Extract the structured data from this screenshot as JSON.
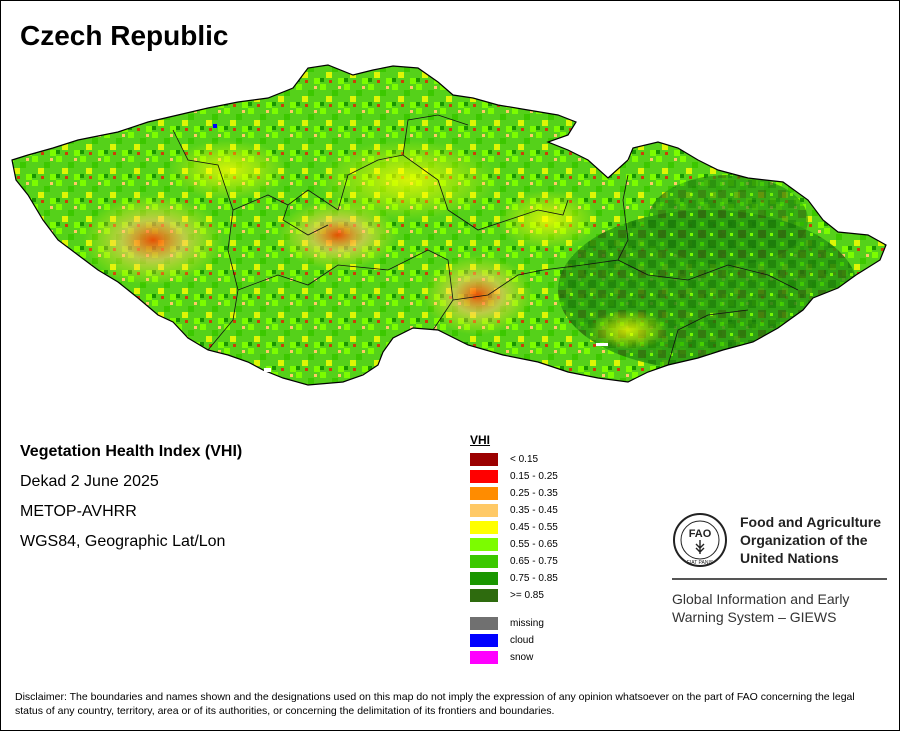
{
  "title": "Czech Republic",
  "info": {
    "index_name": "Vegetation Health Index (VHI)",
    "period": "Dekad 2 June 2025",
    "sensor": "METOP-AVHRR",
    "projection": "WGS84, Geographic Lat/Lon"
  },
  "legend": {
    "title": "VHI",
    "classes": [
      {
        "label": "< 0.15",
        "color": "#9b0000"
      },
      {
        "label": "0.15 - 0.25",
        "color": "#ff0000"
      },
      {
        "label": "0.25 - 0.35",
        "color": "#ff8c00"
      },
      {
        "label": "0.35 - 0.45",
        "color": "#ffc966"
      },
      {
        "label": "0.45 - 0.55",
        "color": "#ffff00"
      },
      {
        "label": "0.55 - 0.65",
        "color": "#7cfc00"
      },
      {
        "label": "0.65 - 0.75",
        "color": "#3cc800"
      },
      {
        "label": "0.75 - 0.85",
        "color": "#1a9600"
      },
      {
        "label": ">= 0.85",
        "color": "#2e6b0e"
      }
    ],
    "special": [
      {
        "label": "missing",
        "color": "#707070"
      },
      {
        "label": "cloud",
        "color": "#0000ff"
      },
      {
        "label": "snow",
        "color": "#ff00ff"
      }
    ]
  },
  "fao": {
    "org_line1": "Food and Agriculture",
    "org_line2": "Organization of the",
    "org_line3": "United Nations",
    "logo_letters": "FAO",
    "logo_motto": "FIAT PANIS",
    "giews_line1": "Global Information and Early",
    "giews_line2": "Warning System – GIEWS"
  },
  "disclaimer": "Disclaimer: The boundaries and names shown and the designations used on this map do not imply the expression of any opinion whatsoever on the part of FAO concerning the legal status of any country, territory, area or of its authorities, or concerning the delimitation of its frontiers and boundaries."
}
